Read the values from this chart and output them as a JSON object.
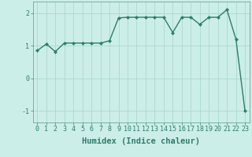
{
  "x": [
    0,
    1,
    2,
    3,
    4,
    5,
    6,
    7,
    8,
    9,
    10,
    11,
    12,
    13,
    14,
    15,
    16,
    17,
    18,
    19,
    20,
    21,
    22,
    23
  ],
  "y": [
    0.85,
    1.05,
    0.82,
    1.08,
    1.08,
    1.08,
    1.08,
    1.08,
    1.15,
    1.85,
    1.87,
    1.87,
    1.87,
    1.87,
    1.87,
    1.4,
    1.87,
    1.87,
    1.65,
    1.87,
    1.87,
    2.1,
    1.2,
    -1.0
  ],
  "line_color": "#2e7d6e",
  "marker": "D",
  "marker_size": 2.0,
  "bg_color": "#cceee8",
  "grid_color": "#aad8d0",
  "xlabel": "Humidex (Indice chaleur)",
  "xlabel_fontsize": 7.5,
  "yticks": [
    -1,
    0,
    1,
    2
  ],
  "xticks": [
    0,
    1,
    2,
    3,
    4,
    5,
    6,
    7,
    8,
    9,
    10,
    11,
    12,
    13,
    14,
    15,
    16,
    17,
    18,
    19,
    20,
    21,
    22,
    23
  ],
  "xlim": [
    -0.5,
    23.5
  ],
  "ylim": [
    -1.35,
    2.35
  ],
  "tick_fontsize": 6.0,
  "tick_color": "#2e7d6e",
  "axis_color": "#5a9a90",
  "linewidth": 1.0
}
